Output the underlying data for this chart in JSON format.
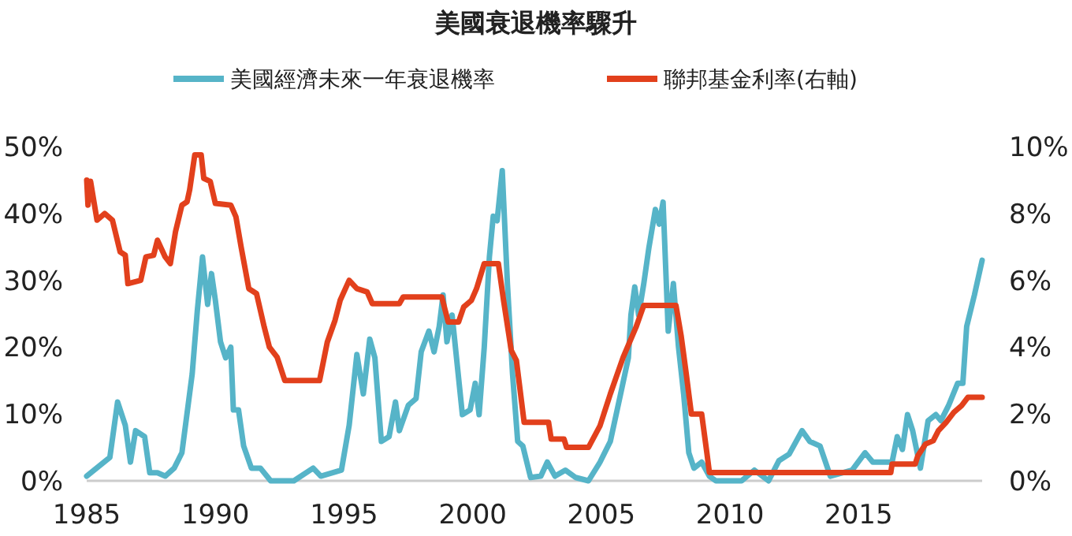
{
  "chart_data": {
    "type": "line",
    "title": "美國衰退機率驟升",
    "legend": "top",
    "grid": false,
    "xlim": [
      1985,
      2019.8
    ],
    "xticks": [
      1985,
      1990,
      1995,
      2000,
      2005,
      2010,
      2015
    ],
    "ylim": [
      0,
      50
    ],
    "yticks": [
      {
        "value": 0,
        "label": "0%"
      },
      {
        "value": 10,
        "label": "10%"
      },
      {
        "value": 20,
        "label": "20%"
      },
      {
        "value": 30,
        "label": "30%"
      },
      {
        "value": 40,
        "label": "40%"
      },
      {
        "value": 50,
        "label": "50%"
      }
    ],
    "y2lim": [
      0,
      10
    ],
    "y2ticks": [
      {
        "value": 0,
        "label": "0%"
      },
      {
        "value": 2,
        "label": "2%"
      },
      {
        "value": 4,
        "label": "4%"
      },
      {
        "value": 6,
        "label": "6%"
      },
      {
        "value": 8,
        "label": "8%"
      },
      {
        "value": 10,
        "label": "10%"
      }
    ],
    "series": [
      {
        "name": "美國經濟未來一年衰退機率",
        "color": "#56b4c8",
        "x": [
          1985.0,
          1985.9,
          1986.2,
          1986.5,
          1986.7,
          1986.9,
          1987.25,
          1987.45,
          1987.75,
          1988.05,
          1988.4,
          1988.7,
          1989.1,
          1989.3,
          1989.5,
          1989.7,
          1989.85,
          1990.0,
          1990.2,
          1990.4,
          1990.6,
          1990.7,
          1990.9,
          1991.1,
          1991.4,
          1991.75,
          1992.15,
          1993.05,
          1993.8,
          1994.1,
          1994.9,
          1995.2,
          1995.5,
          1995.75,
          1996.0,
          1996.2,
          1996.45,
          1996.75,
          1997.0,
          1997.15,
          1997.5,
          1997.8,
          1998.0,
          1998.3,
          1998.5,
          1998.7,
          1998.85,
          1999.0,
          1999.2,
          1999.6,
          1999.9,
          2000.1,
          2000.25,
          2000.45,
          2000.65,
          2000.8,
          2000.95,
          2001.15,
          2001.35,
          2001.55,
          2001.75,
          2001.95,
          2002.25,
          2002.65,
          2002.9,
          2003.2,
          2003.6,
          2004.0,
          2004.5,
          2004.95,
          2005.35,
          2005.75,
          2006.05,
          2006.15,
          2006.3,
          2006.45,
          2006.65,
          2006.85,
          2007.1,
          2007.25,
          2007.4,
          2007.6,
          2007.8,
          2008.0,
          2008.2,
          2008.4,
          2008.6,
          2008.9,
          2009.2,
          2009.45,
          2010.45,
          2010.95,
          2011.5,
          2011.9,
          2012.3,
          2012.8,
          2013.1,
          2013.5,
          2013.9,
          2014.75,
          2015.25,
          2015.55,
          2016.3,
          2016.5,
          2016.7,
          2016.9,
          2017.1,
          2017.4,
          2017.7,
          2018.0,
          2018.2,
          2018.5,
          2018.85,
          2019.05,
          2019.2,
          2019.5,
          2019.8
        ],
        "values": [
          0.7,
          3.5,
          11.8,
          8.3,
          2.8,
          7.5,
          6.6,
          1.2,
          1.2,
          0.7,
          1.9,
          4.2,
          16,
          25.5,
          33.5,
          26.4,
          31,
          27,
          20.8,
          18.4,
          20,
          10.6,
          10.6,
          5.2,
          1.9,
          1.9,
          0,
          0,
          1.9,
          0.7,
          1.6,
          8.3,
          18.9,
          13,
          21.2,
          18.4,
          5.9,
          6.6,
          11.8,
          7.5,
          11.3,
          12.3,
          19.3,
          22.4,
          19.3,
          23.1,
          27.8,
          20.8,
          24.8,
          9.9,
          10.6,
          14.6,
          9.9,
          20,
          33.5,
          39.6,
          38.9,
          46.4,
          29.5,
          16,
          5.9,
          5.2,
          0.5,
          0.7,
          2.8,
          0.7,
          1.6,
          0.5,
          0,
          2.8,
          5.9,
          13,
          18.4,
          24.8,
          29,
          24.8,
          29.5,
          34.9,
          40.6,
          38.4,
          41.7,
          22.4,
          29.5,
          20,
          13,
          4.2,
          1.9,
          2.8,
          0.7,
          0,
          0,
          1.6,
          0,
          3,
          4,
          7.5,
          5.9,
          5.2,
          0.7,
          1.6,
          4.2,
          2.8,
          2.8,
          6.6,
          4.7,
          9.9,
          7.5,
          1.9,
          9,
          9.9,
          9,
          11.3,
          14.6,
          14.6,
          23.1,
          27.8,
          33
        ]
      },
      {
        "name": "聯邦基金利率(右軸)",
        "color": "#e2401c",
        "axis": "y2",
        "x": [
          1985.0,
          1985.05,
          1985.15,
          1985.4,
          1985.7,
          1986.0,
          1986.3,
          1986.5,
          1986.6,
          1987.1,
          1987.3,
          1987.6,
          1987.75,
          1988.05,
          1988.25,
          1988.45,
          1988.7,
          1988.9,
          1989.0,
          1989.2,
          1989.45,
          1989.55,
          1989.8,
          1990.0,
          1990.6,
          1990.8,
          1991.0,
          1991.3,
          1991.6,
          1991.9,
          1992.1,
          1992.4,
          1992.7,
          1994.05,
          1994.35,
          1994.65,
          1994.85,
          1995.2,
          1995.5,
          1995.9,
          1996.1,
          1997.15,
          1997.3,
          1998.8,
          1999.05,
          1999.45,
          1999.65,
          1999.95,
          2000.15,
          2000.45,
          2001.0,
          2001.2,
          2001.5,
          2001.7,
          2002.0,
          2002.95,
          2003.05,
          2003.55,
          2003.65,
          2004.5,
          2004.95,
          2005.35,
          2005.85,
          2006.35,
          2006.65,
          2007.9,
          2008.1,
          2008.3,
          2008.5,
          2008.9,
          2009.1,
          2009.2,
          2016.25,
          2016.3,
          2017.2,
          2017.3,
          2017.6,
          2017.9,
          2018.1,
          2018.4,
          2018.7,
          2019.0,
          2019.25,
          2019.8
        ],
        "values": [
          9.0,
          8.25,
          8.96,
          7.8,
          8.0,
          7.8,
          6.85,
          6.75,
          5.9,
          6.0,
          6.7,
          6.75,
          7.2,
          6.7,
          6.5,
          7.45,
          8.25,
          8.35,
          8.7,
          9.75,
          9.75,
          9.05,
          8.96,
          8.3,
          8.25,
          7.9,
          7.0,
          5.75,
          5.6,
          4.6,
          4.0,
          3.7,
          3.0,
          3.0,
          4.15,
          4.8,
          5.4,
          6.0,
          5.75,
          5.65,
          5.3,
          5.3,
          5.5,
          5.5,
          4.75,
          4.75,
          5.2,
          5.4,
          5.75,
          6.5,
          6.5,
          5.4,
          3.9,
          3.6,
          1.75,
          1.75,
          1.25,
          1.25,
          1.0,
          1.0,
          1.65,
          2.6,
          3.7,
          4.6,
          5.25,
          5.25,
          4.35,
          3.2,
          2.0,
          2.0,
          0.85,
          0.25,
          0.25,
          0.5,
          0.5,
          0.75,
          1.1,
          1.2,
          1.5,
          1.75,
          2.05,
          2.25,
          2.5,
          2.5
        ]
      }
    ]
  }
}
